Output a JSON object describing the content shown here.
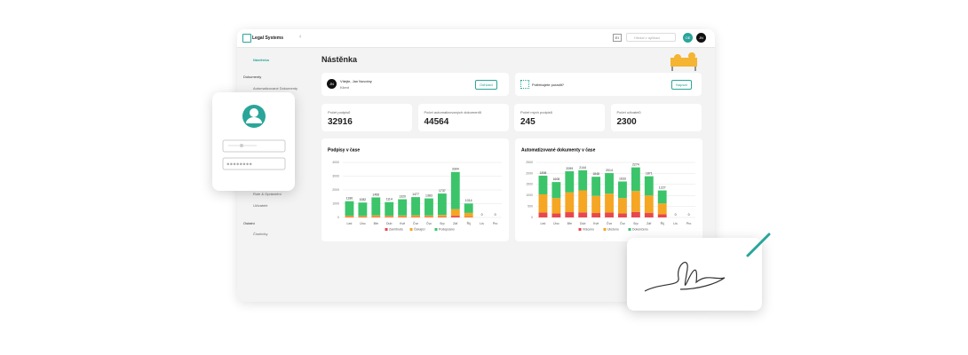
{
  "topbar": {
    "logo": "Legal Systems",
    "lang": "EI",
    "search": "Hledat v aplikaci",
    "avatars": [
      "OE",
      "JN"
    ]
  },
  "sidebar": {
    "home": "Nástěnka",
    "documents_title": "Dokumenty",
    "documents_items": [
      "Automatizované Dokumenty"
    ],
    "admin_items": [
      "Role & Oprávnění",
      "Uživatelé"
    ],
    "other_title": "Ostatní",
    "other_items": [
      "Číselníky"
    ]
  },
  "page_title": "Nástěnka",
  "welcome": {
    "initials": "JN",
    "greeting": "Vítejte, Jan Novotny",
    "role": "Klient",
    "button": "Odhlásit"
  },
  "help": {
    "text": "Potřebujete poradit?",
    "button": "Napsat"
  },
  "stats": [
    {
      "label": "Počet podpisů",
      "value": 32916
    },
    {
      "label": "Počet automatizovaných dokumentů",
      "value": 44564
    },
    {
      "label": "Počet mých podpisů",
      "value": 245
    },
    {
      "label": "Počet uživatelů",
      "value": 2300
    }
  ],
  "chart_data": [
    {
      "type": "bar",
      "stacked": true,
      "title": "Podpisy v čase",
      "categories": [
        "Led",
        "Úno",
        "Bře",
        "Dub",
        "Kvě",
        "Čvn",
        "Čvc",
        "Srp",
        "Zář",
        "Říj",
        "Lis",
        "Pro"
      ],
      "series": [
        {
          "name": "Zamítnuto",
          "color": "#e8474f",
          "values": [
            40,
            35,
            45,
            40,
            40,
            45,
            40,
            50,
            120,
            30,
            0,
            0
          ]
        },
        {
          "name": "Čekající",
          "color": "#f5a623",
          "values": [
            90,
            80,
            110,
            85,
            100,
            110,
            100,
            130,
            480,
            300,
            0,
            0
          ]
        },
        {
          "name": "Podepsáno",
          "color": "#3cc46b",
          "values": [
            1050,
            967,
            1301,
            989,
            1180,
            1322,
            1243,
            1557,
            2704,
            684,
            0,
            0
          ]
        }
      ],
      "totals": [
        1180,
        1082,
        1456,
        1114,
        1320,
        1477,
        1383,
        1737,
        3304,
        1014,
        0,
        0
      ],
      "ylim": [
        0,
        4000
      ],
      "yticks": [
        0,
        1000,
        2000,
        3000,
        4000
      ],
      "grid": true,
      "legend": "bottom"
    },
    {
      "type": "bar",
      "stacked": true,
      "title": "Automatizované dokumenty v čase",
      "categories": [
        "Led",
        "Úno",
        "Bře",
        "Dub",
        "Kvě",
        "Čvn",
        "Čvc",
        "Srp",
        "Zář",
        "Říj",
        "Lis",
        "Pro"
      ],
      "series": [
        {
          "name": "Vráceno",
          "color": "#e8474f",
          "values": [
            220,
            180,
            240,
            230,
            200,
            220,
            180,
            250,
            200,
            140,
            0,
            0
          ]
        },
        {
          "name": "Uloženo",
          "color": "#f5a623",
          "values": [
            830,
            700,
            900,
            1000,
            780,
            860,
            700,
            950,
            800,
            500,
            0,
            0
          ]
        },
        {
          "name": "Dokončeno",
          "color": "#3cc46b",
          "values": [
            848,
            728,
            959,
            914,
            868,
            934,
            753,
            1074,
            871,
            587,
            0,
            0
          ]
        }
      ],
      "totals": [
        1898,
        1608,
        2099,
        2144,
        1848,
        2014,
        1633,
        2274,
        1871,
        1227,
        0,
        0
      ],
      "ylim": [
        0,
        2500
      ],
      "yticks": [
        0,
        500,
        1000,
        1500,
        2000,
        2500
      ],
      "grid": true,
      "legend": "bottom"
    }
  ]
}
